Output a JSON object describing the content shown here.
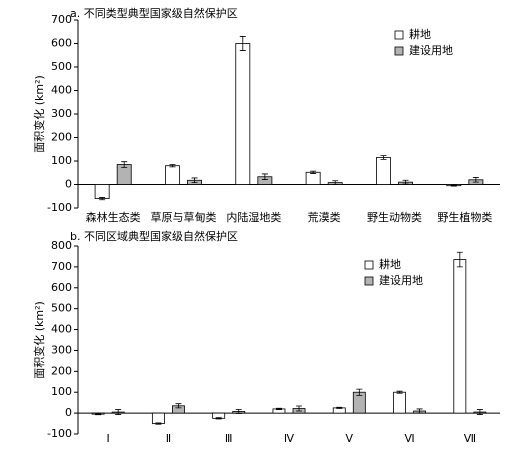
{
  "chart_data": [
    {
      "type": "bar",
      "title": "a. 不同类型典型国家级自然保护区",
      "y_label": "面积变化 (km²)",
      "categories": [
        "森林生态类",
        "草原与草甸类",
        "内陆湿地类",
        "荒漠类",
        "野生动物类",
        "野生植物类"
      ],
      "series": [
        {
          "name": "耕地",
          "color": "#ffffff",
          "values": [
            -60,
            80,
            600,
            52,
            115,
            -5
          ],
          "errors": [
            5,
            5,
            30,
            5,
            8,
            2
          ]
        },
        {
          "name": "建设用地",
          "color": "#b3b3b3",
          "values": [
            85,
            18,
            33,
            8,
            10,
            20
          ],
          "errors": [
            12,
            10,
            12,
            8,
            8,
            10
          ]
        }
      ],
      "ylim": [
        -100,
        700
      ],
      "yticks": [
        -100,
        0,
        100,
        200,
        300,
        400,
        500,
        600,
        700
      ],
      "legend": "upper right"
    },
    {
      "type": "bar",
      "title": "b. 不同区域典型国家级自然保护区",
      "y_label": "面积变化 (km²)",
      "categories": [
        "Ⅰ",
        "Ⅱ",
        "Ⅲ",
        "Ⅳ",
        "Ⅴ",
        "Ⅵ",
        "Ⅶ"
      ],
      "series": [
        {
          "name": "耕地",
          "color": "#ffffff",
          "values": [
            -5,
            -50,
            -25,
            20,
            25,
            100,
            735
          ],
          "errors": [
            3,
            3,
            3,
            3,
            3,
            5,
            35
          ]
        },
        {
          "name": "建设用地",
          "color": "#b3b3b3",
          "values": [
            5,
            35,
            8,
            22,
            100,
            10,
            5
          ],
          "errors": [
            12,
            10,
            10,
            12,
            15,
            10,
            12
          ]
        }
      ],
      "ylim": [
        -100,
        800
      ],
      "yticks": [
        -100,
        0,
        100,
        200,
        300,
        400,
        500,
        600,
        700,
        800
      ],
      "legend": "upper right"
    }
  ]
}
